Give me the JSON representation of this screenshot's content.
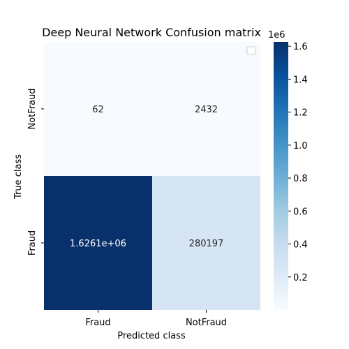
{
  "chart_data": {
    "type": "heatmap",
    "title": "Deep Neural Network Confusion matrix",
    "xlabel": "Predicted class",
    "ylabel": "True class",
    "x_categories": [
      "Fraud",
      "NotFraud"
    ],
    "y_categories": [
      "NotFraud",
      "Fraud"
    ],
    "values": [
      [
        62,
        2432
      ],
      [
        1626100,
        280197
      ]
    ],
    "annotations": [
      [
        "62",
        "2432"
      ],
      [
        "1.6261e+06",
        "280197"
      ]
    ],
    "colormap": "Blues",
    "colorbar": {
      "min": 0,
      "max": 1626100,
      "ticks": [
        0.2,
        0.4,
        0.6,
        0.8,
        1.0,
        1.2,
        1.4,
        1.6
      ],
      "tick_labels": [
        "0.2",
        "0.4",
        "0.6",
        "0.8",
        "1.0",
        "1.2",
        "1.4",
        "1.6"
      ],
      "exponent_label": "1e6"
    },
    "legend": "empty box at top-right"
  }
}
